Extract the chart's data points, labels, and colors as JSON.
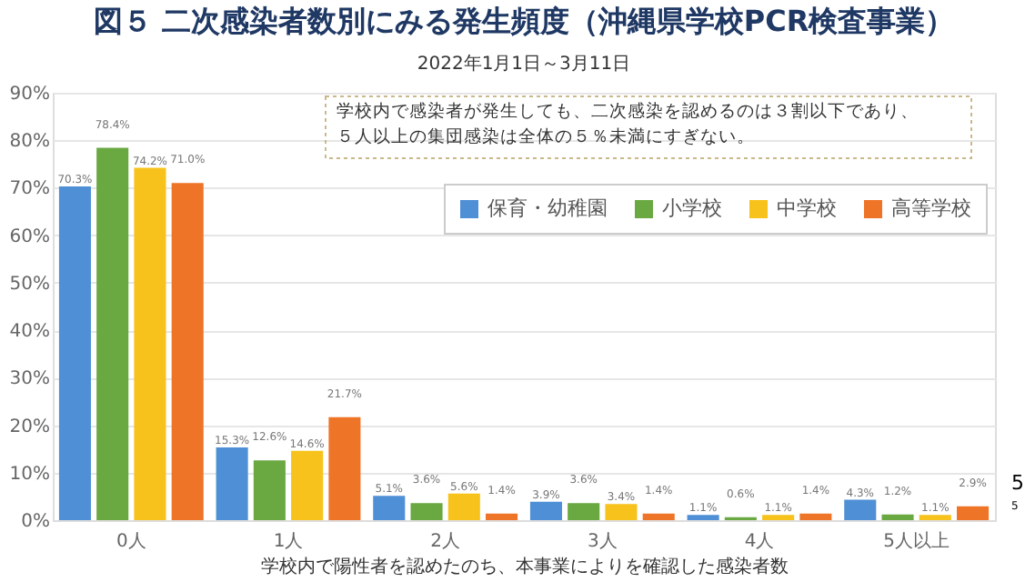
{
  "chart_data": {
    "type": "bar",
    "title": "図５ 二次感染者数別にみる発生頻度（沖縄県学校PCR検査事業）",
    "subtitle": "2022年1月1日～3月11日",
    "xlabel": "学校内で陽性者を認めたのち、本事業によりを確認した感染者数",
    "categories": [
      "0人",
      "1人",
      "2人",
      "3人",
      "4人",
      "5人以上"
    ],
    "series": [
      {
        "name": "保育・幼稚園",
        "color": "#4f8fd6",
        "values": [
          70.3,
          15.3,
          5.1,
          3.9,
          1.1,
          4.3
        ],
        "value_labels": [
          "70.3%",
          "15.3%",
          "5.1%",
          "3.9%",
          "1.1%",
          "4.3%"
        ]
      },
      {
        "name": "小学校",
        "color": "#6aa842",
        "values": [
          78.4,
          12.6,
          3.6,
          3.6,
          0.6,
          1.2
        ],
        "value_labels": [
          "78.4%",
          "12.6%",
          "3.6%",
          "3.6%",
          "0.6%",
          "1.2%"
        ]
      },
      {
        "name": "中学校",
        "color": "#f6c21b",
        "values": [
          74.2,
          14.6,
          5.6,
          3.4,
          1.1,
          1.1
        ],
        "value_labels": [
          "74.2%",
          "14.6%",
          "5.6%",
          "3.4%",
          "1.1%",
          "1.1%"
        ]
      },
      {
        "name": "高等学校",
        "color": "#ee7428",
        "values": [
          71.0,
          21.7,
          1.4,
          1.4,
          1.4,
          2.9
        ],
        "value_labels": [
          "71.0%",
          "21.7%",
          "1.4%",
          "1.4%",
          "1.4%",
          "2.9%"
        ]
      }
    ],
    "ylim": [
      0,
      90
    ],
    "yticks": [
      {
        "value": 0,
        "label": "0%"
      },
      {
        "value": 10,
        "label": "10%"
      },
      {
        "value": 20,
        "label": "20%"
      },
      {
        "value": 30,
        "label": "30%"
      },
      {
        "value": 40,
        "label": "40%"
      },
      {
        "value": 50,
        "label": "50%"
      },
      {
        "value": 60,
        "label": "60%"
      },
      {
        "value": 70,
        "label": "70%"
      },
      {
        "value": 80,
        "label": "80%"
      },
      {
        "value": 90,
        "label": "90%"
      }
    ],
    "grid": "y",
    "legend": "top right",
    "annotations": [
      "学校内で感染者が発生しても、二次感染を認めるのは３割以下であり、",
      "５人以上の集団感染は全体の５％未満にすぎない。",
      "5",
      "5"
    ]
  }
}
